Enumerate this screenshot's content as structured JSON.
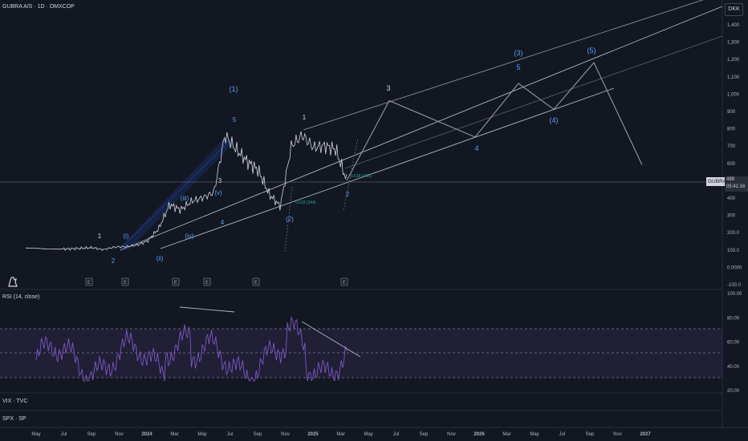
{
  "header": {
    "main_title": "GUBRA A/S · 1D · OMXCOP",
    "currency": "DKK",
    "symbol_tag": "GUBRA",
    "last_price": "499",
    "countdown": "05:41:16"
  },
  "indicators": {
    "rsi_title": "RSI (14, close)",
    "vix_title": "VIX · TVC",
    "spx_title": "SPX · SP"
  },
  "chart_data": [
    {
      "type": "line",
      "title": "GUBRA A/S · 1D · OMXCOP",
      "y_ticks": [
        "1,400",
        "1,300",
        "1,200",
        "1,100",
        "1,000",
        "900",
        "800",
        "700",
        "600",
        "500",
        "400",
        "300",
        "200.0",
        "100.0",
        "0.0000",
        "-100.0"
      ],
      "x_ticks": [
        "May",
        "Jul",
        "Sep",
        "Nov",
        "2024",
        "Mar",
        "May",
        "Jul",
        "Sep",
        "Nov",
        "2025",
        "Mar",
        "May",
        "Jul",
        "Sep",
        "Nov",
        "2026",
        "Mar",
        "May",
        "Jul",
        "Sep",
        "Nov",
        "2027"
      ],
      "series": [
        {
          "values_approx_price": [
            110,
            108,
            104,
            103,
            105,
            108,
            112,
            100,
            115,
            118,
            125,
            150,
            220,
            360,
            330,
            380,
            400,
            430,
            760,
            680,
            610,
            560,
            420,
            350,
            700,
            760,
            690,
            700,
            680,
            499
          ]
        }
      ],
      "projection": {
        "points": [
          499,
          960,
          750,
          1060,
          910,
          1180,
          590
        ],
        "labels": [
          "3",
          "4",
          "5",
          "(4)",
          "(5)"
        ]
      },
      "wave_labels": [
        "1",
        "2",
        "(i)",
        "(ii)",
        "(iii)",
        "(iv)",
        "(v)",
        "3",
        "4",
        "5",
        "(1)",
        "(2)",
        "1",
        "2",
        "(3)"
      ],
      "annotations": [
        "0.618 (344)",
        "0.618 (460)"
      ],
      "event_markers": [
        "E",
        "E",
        "E",
        "E",
        "E",
        "E"
      ]
    },
    {
      "type": "line",
      "title": "RSI (14, close)",
      "y_ticks": [
        "100.00",
        "80.00",
        "60.00",
        "40.00",
        "20.00"
      ],
      "ylim": [
        20,
        100
      ],
      "bands": [
        30,
        50,
        70
      ]
    }
  ]
}
